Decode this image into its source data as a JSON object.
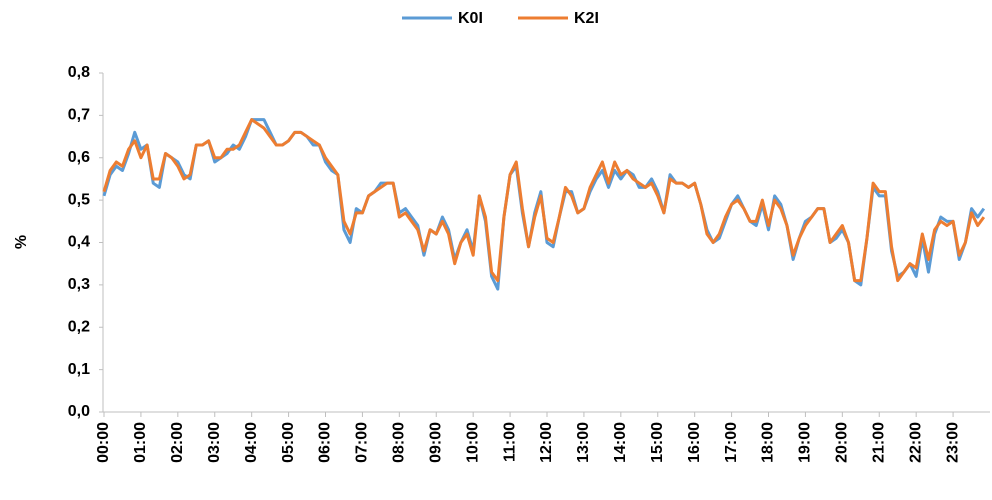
{
  "chart_data": {
    "type": "line",
    "categories": [
      "00:00",
      null,
      null,
      null,
      null,
      null,
      "01:00",
      null,
      null,
      null,
      null,
      null,
      "02:00",
      null,
      null,
      null,
      null,
      null,
      "03:00",
      null,
      null,
      null,
      null,
      null,
      "04:00",
      null,
      null,
      null,
      null,
      null,
      "05:00",
      null,
      null,
      null,
      null,
      null,
      "06:00",
      null,
      null,
      null,
      null,
      null,
      "07:00",
      null,
      null,
      null,
      null,
      null,
      "08:00",
      null,
      null,
      null,
      null,
      null,
      "09:00",
      null,
      null,
      null,
      null,
      null,
      "10:00",
      null,
      null,
      null,
      null,
      null,
      "11:00",
      null,
      null,
      null,
      null,
      null,
      "12:00",
      null,
      null,
      null,
      null,
      null,
      "13:00",
      null,
      null,
      null,
      null,
      null,
      "14:00",
      null,
      null,
      null,
      null,
      null,
      "15:00",
      null,
      null,
      null,
      null,
      null,
      "16:00",
      null,
      null,
      null,
      null,
      null,
      "17:00",
      null,
      null,
      null,
      null,
      null,
      "18:00",
      null,
      null,
      null,
      null,
      null,
      "19:00",
      null,
      null,
      null,
      null,
      null,
      "20:00",
      null,
      null,
      null,
      null,
      null,
      "21:00",
      null,
      null,
      null,
      null,
      null,
      "22:00",
      null,
      null,
      null,
      null,
      null,
      "23:00",
      null,
      null,
      null,
      null,
      null
    ],
    "series": [
      {
        "name": "K0I",
        "color": "#5b9bd5",
        "values": [
          0.51,
          0.56,
          0.58,
          0.57,
          0.61,
          0.66,
          0.62,
          0.63,
          0.54,
          0.53,
          0.61,
          0.6,
          0.59,
          0.56,
          0.55,
          0.63,
          0.63,
          0.64,
          0.59,
          0.6,
          0.61,
          0.63,
          0.62,
          0.65,
          0.69,
          0.69,
          0.69,
          0.66,
          0.63,
          0.63,
          0.64,
          0.66,
          0.66,
          0.65,
          0.63,
          0.63,
          0.59,
          0.57,
          0.56,
          0.43,
          0.4,
          0.48,
          0.47,
          0.51,
          0.52,
          0.54,
          0.54,
          0.54,
          0.47,
          0.48,
          0.46,
          0.44,
          0.37,
          0.43,
          0.42,
          0.46,
          0.43,
          0.36,
          0.4,
          0.43,
          0.38,
          0.51,
          0.45,
          0.32,
          0.29,
          0.46,
          0.56,
          0.58,
          0.47,
          0.39,
          0.47,
          0.52,
          0.4,
          0.39,
          0.46,
          0.52,
          0.52,
          0.47,
          0.48,
          0.52,
          0.55,
          0.57,
          0.53,
          0.57,
          0.55,
          0.57,
          0.56,
          0.53,
          0.53,
          0.55,
          0.52,
          0.47,
          0.56,
          0.54,
          0.54,
          0.53,
          0.54,
          0.49,
          0.43,
          0.4,
          0.41,
          0.45,
          0.49,
          0.51,
          0.48,
          0.45,
          0.44,
          0.49,
          0.43,
          0.51,
          0.49,
          0.44,
          0.36,
          0.41,
          0.45,
          0.46,
          0.48,
          0.48,
          0.4,
          0.41,
          0.43,
          0.4,
          0.31,
          0.3,
          0.41,
          0.53,
          0.51,
          0.51,
          0.38,
          0.32,
          0.33,
          0.35,
          0.32,
          0.41,
          0.33,
          0.42,
          0.46,
          0.45,
          0.45,
          0.36,
          0.4,
          0.48,
          0.46,
          0.48
        ]
      },
      {
        "name": "K2I",
        "color": "#ed7d31",
        "values": [
          0.52,
          0.57,
          0.59,
          0.58,
          0.62,
          0.64,
          0.6,
          0.63,
          0.55,
          0.55,
          0.61,
          0.6,
          0.58,
          0.55,
          0.56,
          0.63,
          0.63,
          0.64,
          0.6,
          0.6,
          0.62,
          0.62,
          0.63,
          0.66,
          0.69,
          0.68,
          0.67,
          0.65,
          0.63,
          0.63,
          0.64,
          0.66,
          0.66,
          0.65,
          0.64,
          0.63,
          0.6,
          0.58,
          0.56,
          0.45,
          0.42,
          0.47,
          0.47,
          0.51,
          0.52,
          0.53,
          0.54,
          0.54,
          0.46,
          0.47,
          0.45,
          0.43,
          0.38,
          0.43,
          0.42,
          0.45,
          0.42,
          0.35,
          0.4,
          0.42,
          0.37,
          0.51,
          0.46,
          0.33,
          0.31,
          0.46,
          0.56,
          0.59,
          0.48,
          0.39,
          0.46,
          0.51,
          0.41,
          0.4,
          0.46,
          0.53,
          0.51,
          0.47,
          0.48,
          0.53,
          0.56,
          0.59,
          0.54,
          0.59,
          0.56,
          0.57,
          0.55,
          0.54,
          0.53,
          0.54,
          0.51,
          0.47,
          0.55,
          0.54,
          0.54,
          0.53,
          0.54,
          0.49,
          0.42,
          0.4,
          0.42,
          0.46,
          0.49,
          0.5,
          0.48,
          0.45,
          0.45,
          0.5,
          0.44,
          0.5,
          0.48,
          0.44,
          0.37,
          0.41,
          0.44,
          0.46,
          0.48,
          0.48,
          0.4,
          0.42,
          0.44,
          0.4,
          0.31,
          0.31,
          0.41,
          0.54,
          0.52,
          0.52,
          0.39,
          0.31,
          0.33,
          0.35,
          0.34,
          0.42,
          0.36,
          0.43,
          0.45,
          0.44,
          0.45,
          0.37,
          0.4,
          0.47,
          0.44,
          0.46
        ]
      }
    ],
    "y_label": "%",
    "ylim": [
      0,
      0.8
    ],
    "yticks": [
      {
        "value": 0,
        "label": "0,0"
      },
      {
        "value": 0.1,
        "label": "0,1"
      },
      {
        "value": 0.2,
        "label": "0,2"
      },
      {
        "value": 0.3,
        "label": "0,3"
      },
      {
        "value": 0.4,
        "label": "0,4"
      },
      {
        "value": 0.5,
        "label": "0,5"
      },
      {
        "value": 0.6,
        "label": "0,6"
      },
      {
        "value": 0.7,
        "label": "0,7"
      },
      {
        "value": 0.8,
        "label": "0,8"
      }
    ],
    "legend": "top"
  }
}
